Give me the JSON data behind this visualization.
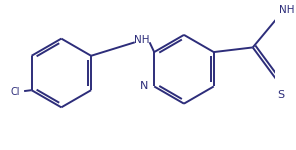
{
  "line_color": "#2d2d7a",
  "bg_color": "#ffffff",
  "line_width": 1.4,
  "figsize": [
    2.96,
    1.5
  ],
  "dpi": 100,
  "xlim": [
    0,
    296
  ],
  "ylim": [
    0,
    150
  ]
}
